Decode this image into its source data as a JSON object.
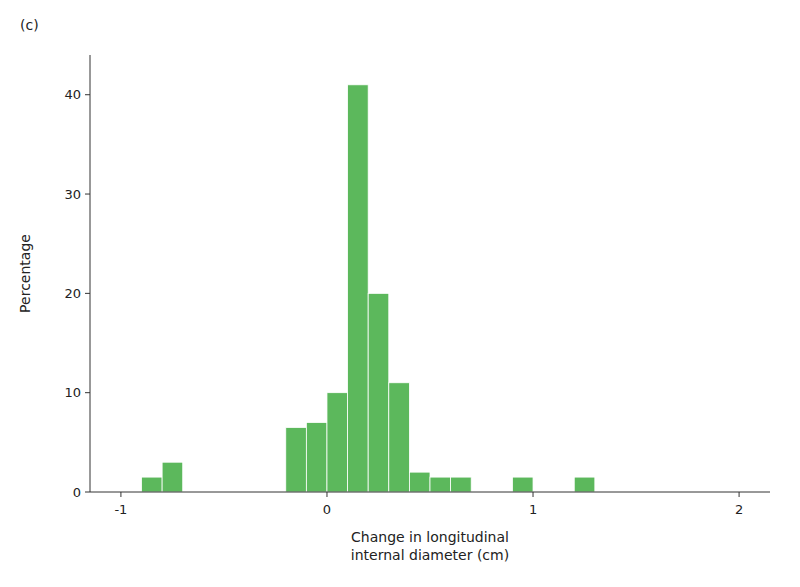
{
  "chart_data": {
    "type": "histogram",
    "x": [
      -0.9,
      -0.8,
      -0.2,
      -0.1,
      0.0,
      0.1,
      0.2,
      0.3,
      0.4,
      0.5,
      0.6,
      0.9,
      1.2
    ],
    "bin_width": 0.1,
    "values": [
      1.5,
      3.0,
      6.5,
      7.0,
      10.0,
      41.0,
      20.0,
      11.0,
      2.0,
      1.5,
      1.5,
      1.5,
      1.5
    ],
    "color": "#5cb85c",
    "xlabel": "Change in longitudinal\ninternal diameter (cm)",
    "ylabel": "Percentage",
    "xlim": [
      -1.15,
      2.15
    ],
    "ylim": [
      0,
      44
    ],
    "xticks": [
      -1,
      0,
      1,
      2
    ],
    "yticks": [
      0,
      10,
      20,
      30,
      40
    ],
    "annotations": [
      "(c)"
    ],
    "grid": false
  }
}
